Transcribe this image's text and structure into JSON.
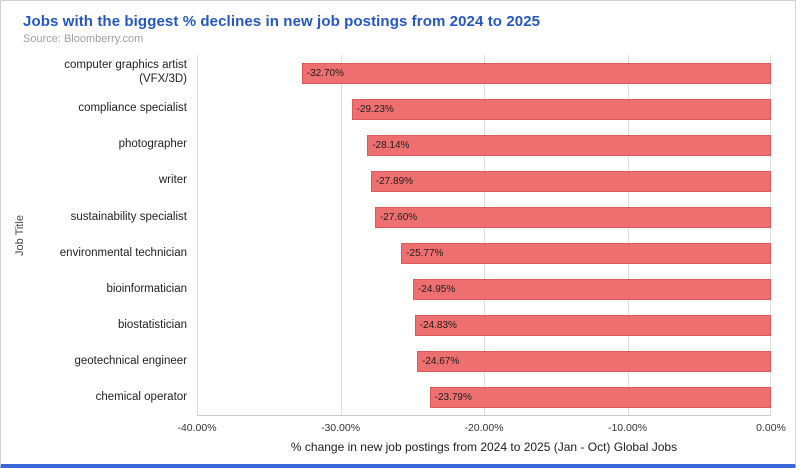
{
  "chart_data": {
    "type": "bar",
    "orientation": "horizontal",
    "title": "Jobs with the biggest % declines in new job postings from 2024 to 2025",
    "source": "Source: Bloomberry.com",
    "ylabel": "Job Title",
    "xlabel": "% change in new job postings from 2024 to 2025 (Jan - Oct) Global Jobs",
    "categories": [
      "computer graphics artist (VFX/3D)",
      "compliance specialist",
      "photographer",
      "writer",
      "sustainability specialist",
      "environmental technician",
      "bioinformatician",
      "biostatistician",
      "geotechnical engineer",
      "chemical operator"
    ],
    "values": [
      -32.7,
      -29.23,
      -28.14,
      -27.89,
      -27.6,
      -25.77,
      -24.95,
      -24.83,
      -24.67,
      -23.79
    ],
    "value_labels": [
      "-32.70%",
      "-29.23%",
      "-28.14%",
      "-27.89%",
      "-27.60%",
      "-25.77%",
      "-24.95%",
      "-24.83%",
      "-24.67%",
      "-23.79%"
    ],
    "x_ticks": [
      "-40.00%",
      "-30.00%",
      "-20.00%",
      "-10.00%",
      "0.00%"
    ],
    "xlim": [
      -40,
      0
    ],
    "grid": true,
    "legend": "none",
    "colors": {
      "title": "#2457c5",
      "bottom_bar": "#3b66d9",
      "bar_fill": "#ee6f6f",
      "bar_border": "#dd5858",
      "gridline": "#dedede",
      "source_text": "#9e9e9e"
    }
  }
}
